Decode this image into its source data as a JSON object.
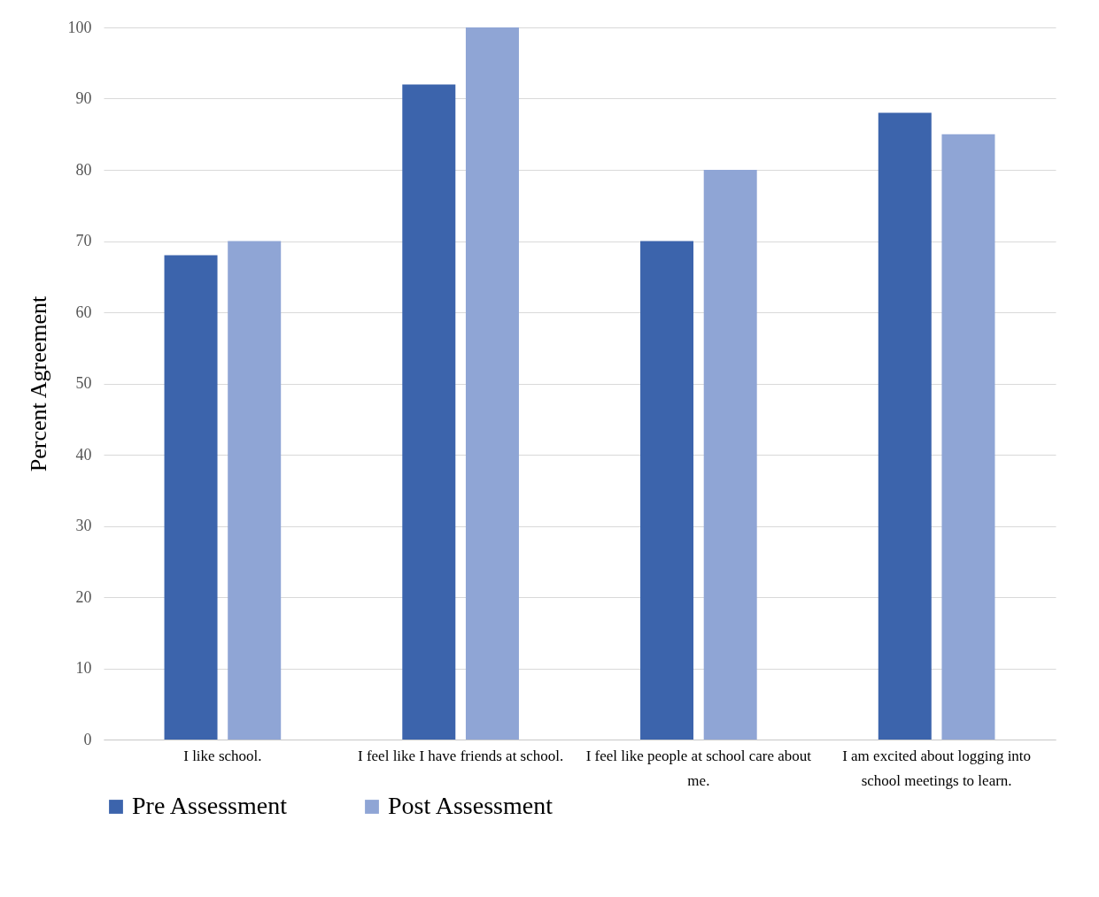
{
  "chart_data": {
    "type": "bar",
    "ylabel": "Percent Agreement",
    "categories": [
      "I like school.",
      "I feel like I have friends at school.",
      "I feel like people at school care about me.",
      "I am excited about logging into school meetings to learn."
    ],
    "series": [
      {
        "name": "Pre Assessment",
        "color": "#3c64ac",
        "values": [
          68,
          92,
          70,
          88
        ]
      },
      {
        "name": "Post Assessment",
        "color": "#8fa5d5",
        "values": [
          70,
          100,
          80,
          85
        ]
      }
    ],
    "ylim": [
      0,
      100
    ],
    "yticks": [
      0,
      10,
      20,
      30,
      40,
      50,
      60,
      70,
      80,
      90,
      100
    ],
    "grid": "y",
    "legend": "bottom"
  }
}
